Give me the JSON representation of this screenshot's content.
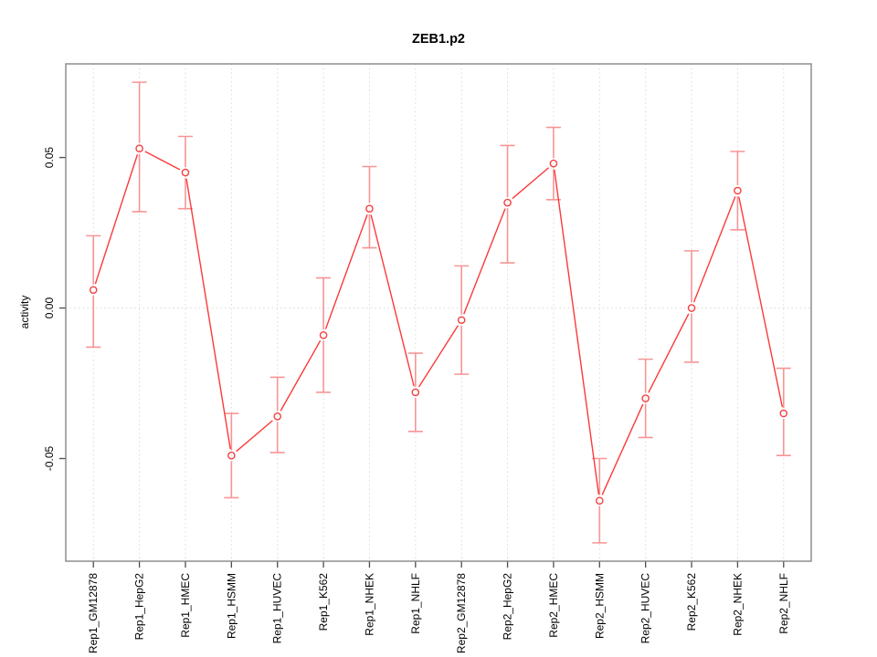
{
  "chart_data": {
    "type": "line",
    "title": "ZEB1.p2",
    "xlabel": "",
    "ylabel": "activity",
    "categories": [
      "Rep1_GM12878",
      "Rep1_HepG2",
      "Rep1_HMEC",
      "Rep1_HSMM",
      "Rep1_HUVEC",
      "Rep1_K562",
      "Rep1_NHEK",
      "Rep1_NHLF",
      "Rep2_GM12878",
      "Rep2_HepG2",
      "Rep2_HMEC",
      "Rep2_HSMM",
      "Rep2_HUVEC",
      "Rep2_K562",
      "Rep2_NHEK",
      "Rep2_NHLF"
    ],
    "series": [
      {
        "name": "activity",
        "marker": "open-circle",
        "values": [
          0.006,
          0.053,
          0.045,
          -0.049,
          -0.036,
          -0.009,
          0.033,
          -0.028,
          -0.004,
          0.035,
          0.048,
          -0.064,
          -0.03,
          0.0,
          0.039,
          -0.035
        ],
        "ci_high": [
          0.024,
          0.075,
          0.057,
          -0.035,
          -0.023,
          0.01,
          0.047,
          -0.015,
          0.014,
          0.054,
          0.06,
          -0.05,
          -0.017,
          0.019,
          0.052,
          -0.02
        ],
        "ci_low": [
          -0.013,
          0.032,
          0.033,
          -0.063,
          -0.048,
          -0.028,
          0.02,
          -0.041,
          -0.022,
          0.015,
          0.036,
          -0.078,
          -0.043,
          -0.018,
          0.026,
          -0.049
        ]
      }
    ],
    "yticks": [
      -0.05,
      0.0,
      0.05
    ],
    "ylim": [
      -0.0841,
      0.0811
    ],
    "xlim_index": [
      0.4,
      16.6
    ],
    "grid": {
      "vertical_at_categories": true,
      "horizontal_lines_at": [
        0
      ],
      "style": "dotted"
    },
    "legend": "none",
    "colors": {
      "line": "#fb3a3a",
      "marker": "#f54040",
      "error_bar": "#f79595",
      "grid": "#d9d9d9",
      "frame": "#868686",
      "tick": "#4d4d4d",
      "text": "#000000",
      "background": "#ffffff"
    }
  }
}
